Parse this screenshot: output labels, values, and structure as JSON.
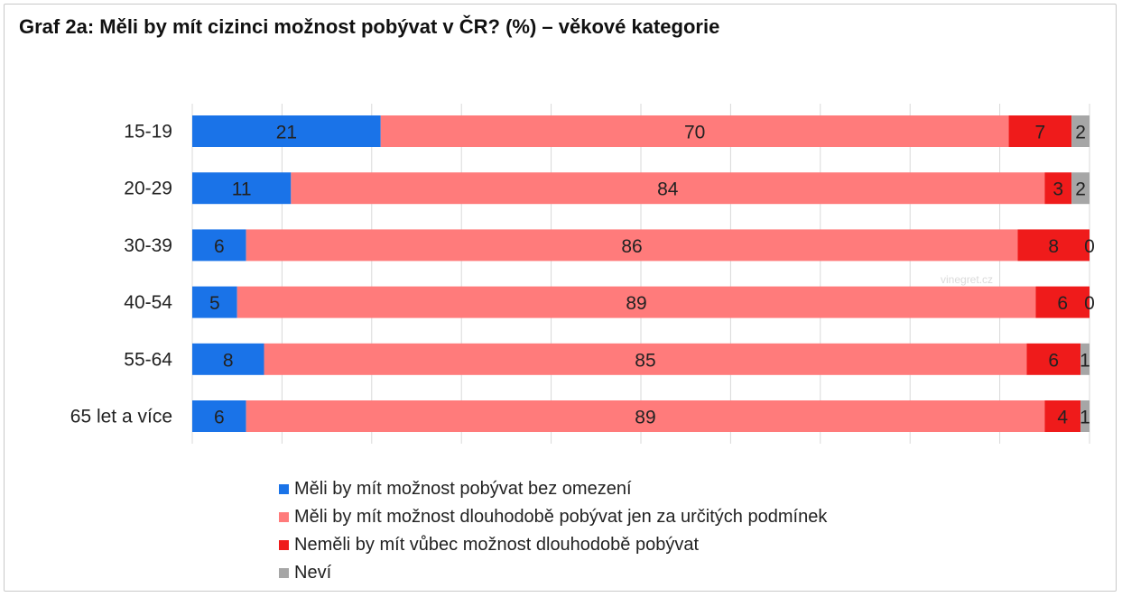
{
  "title": "Graf 2a: Měli by mít cizinci možnost pobývat v ČR? (%) – věkové kategorie",
  "watermark": {
    "text": "винегрет",
    "site": "vinegret.cz"
  },
  "legend": [
    {
      "label": "Měli by mít možnost pobývat bez omezení",
      "color": "#1a73e8"
    },
    {
      "label": "Měli by mít možnost dlouhodobě pobývat jen za určitých podmínek",
      "color": "#ff7b7b"
    },
    {
      "label": "Neměli by mít vůbec možnost dlouhodobě pobývat",
      "color": "#ef1b1b"
    },
    {
      "label": "Neví",
      "color": "#a6a6a6"
    }
  ],
  "chart_data": {
    "type": "bar",
    "orientation": "horizontal",
    "stacked": true,
    "grid": true,
    "legend_position": "bottom",
    "categories": [
      "15-19",
      "20-29",
      "30-39",
      "40-54",
      "55-64",
      "65 let a více"
    ],
    "series": [
      {
        "name": "Měli by mít možnost pobývat bez omezení",
        "color": "#1a73e8",
        "values": [
          21,
          11,
          6,
          5,
          8,
          6
        ]
      },
      {
        "name": "Měli by mít možnost dlouhodobě pobývat jen za určitých podmínek",
        "color": "#ff7b7b",
        "values": [
          70,
          84,
          86,
          89,
          85,
          89
        ]
      },
      {
        "name": "Neměli by mít vůbec možnost dlouhodobě pobývat",
        "color": "#ef1b1b",
        "values": [
          7,
          3,
          8,
          6,
          6,
          4
        ]
      },
      {
        "name": "Neví",
        "color": "#a6a6a6",
        "values": [
          2,
          2,
          0,
          0,
          1,
          1
        ]
      }
    ],
    "xlim": [
      0,
      100
    ]
  }
}
